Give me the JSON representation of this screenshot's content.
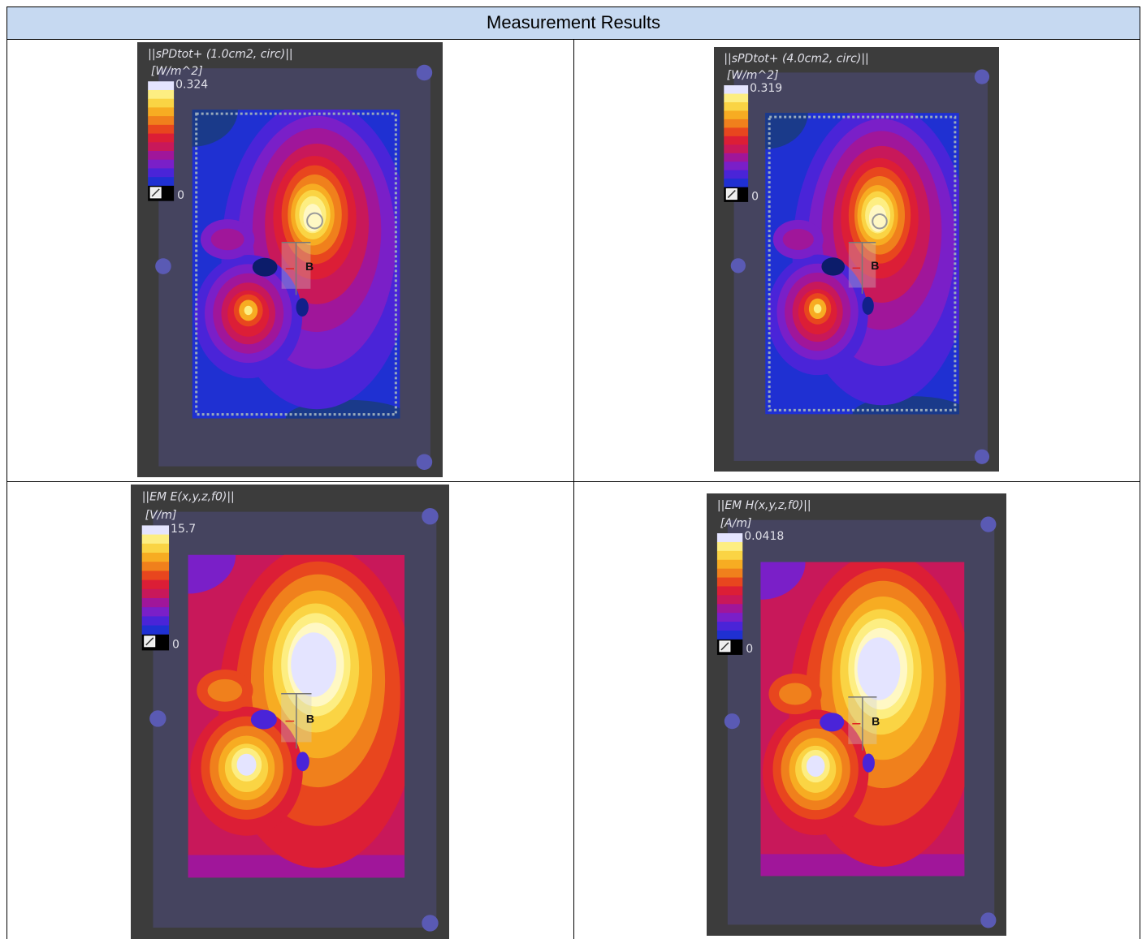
{
  "header": {
    "title": "Measurement Results"
  },
  "panels": [
    {
      "title": "||sPDtot+ (1.0cm2, circ)||",
      "unit": "[W/m^2]",
      "max_label": "0.324",
      "min_label": "0",
      "marker_label": "B"
    },
    {
      "title": "||sPDtot+ (4.0cm2, circ)||",
      "unit": "[W/m^2]",
      "max_label": "0.319",
      "min_label": "0",
      "marker_label": "B"
    },
    {
      "title": "||EM E(x,y,z,f0)||",
      "unit": "[V/m]",
      "max_label": "15.7",
      "min_label": "0",
      "marker_label": "B"
    },
    {
      "title": "||EM H(x,y,z,f0)||",
      "unit": "[A/m]",
      "max_label": "0.0418",
      "min_label": "0",
      "marker_label": "B"
    }
  ]
}
